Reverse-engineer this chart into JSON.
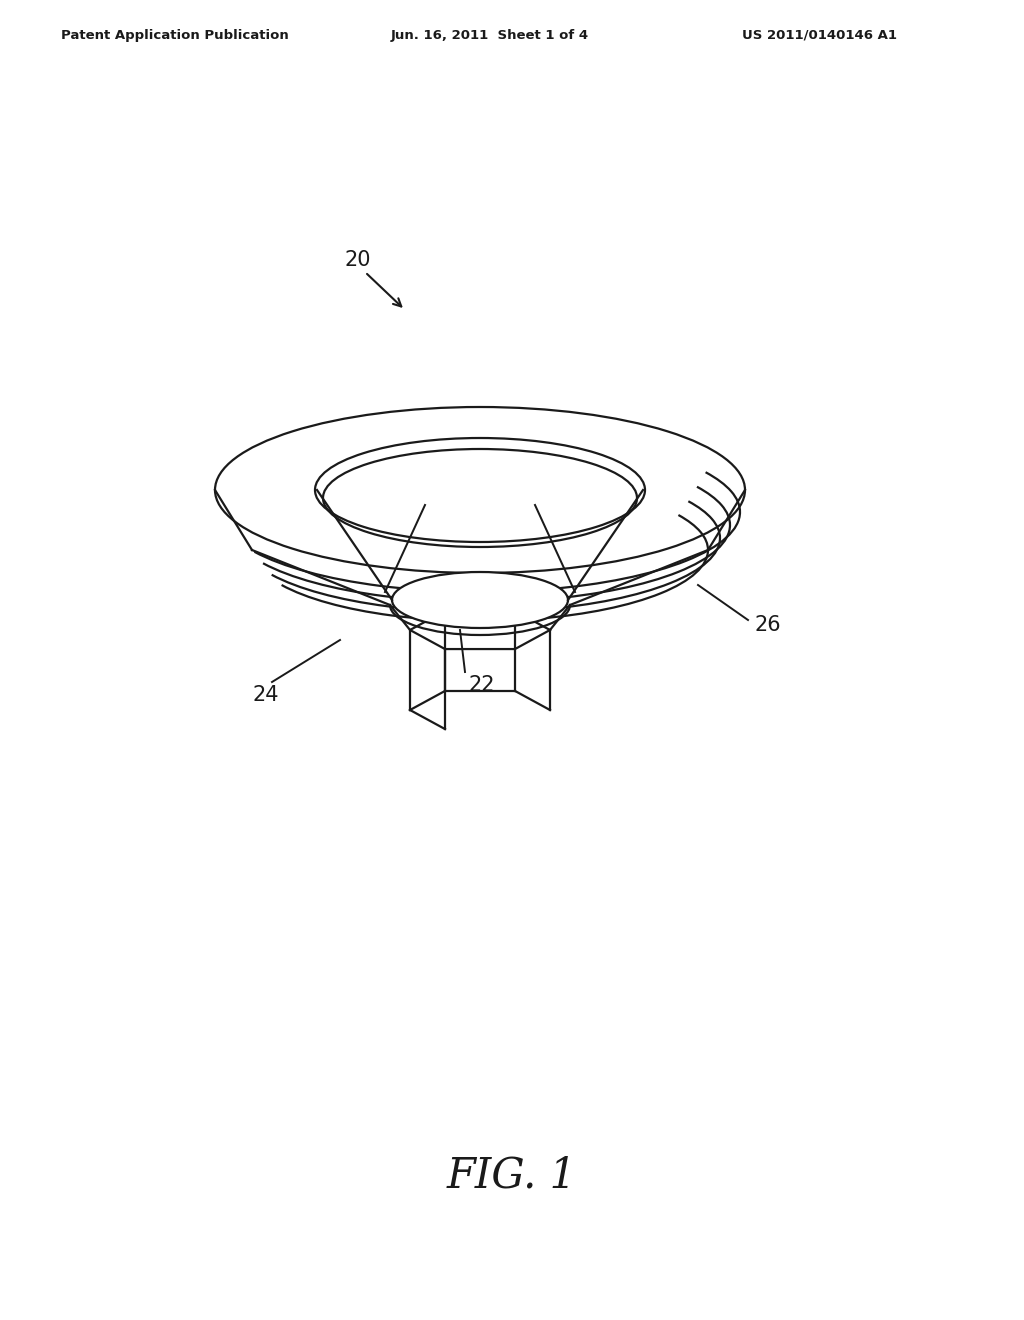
{
  "bg_color": "#ffffff",
  "line_color": "#1a1a1a",
  "header_left": "Patent Application Publication",
  "header_center": "Jun. 16, 2011  Sheet 1 of 4",
  "header_right": "US 2011/0140146 A1",
  "fig_label": "FIG. 1",
  "label_20": "20",
  "label_22": "22",
  "label_24": "24",
  "label_26": "26"
}
